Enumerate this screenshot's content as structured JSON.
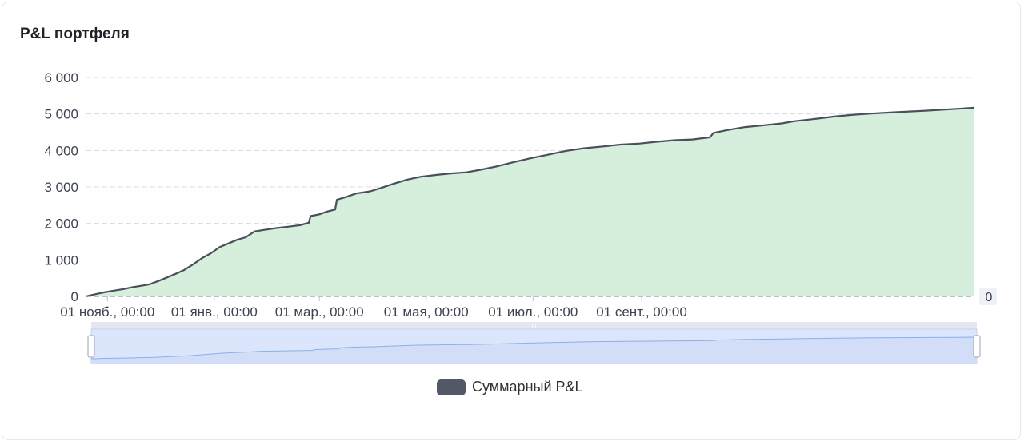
{
  "card": {
    "title": "P&L портфеля"
  },
  "chart_data": {
    "type": "area",
    "series": [
      {
        "name": "Суммарный P&L",
        "points": [
          [
            "2023-10-20",
            0
          ],
          [
            "2023-10-25",
            60
          ],
          [
            "2023-10-30",
            110
          ],
          [
            "2023-11-05",
            160
          ],
          [
            "2023-11-10",
            200
          ],
          [
            "2023-11-15",
            250
          ],
          [
            "2023-11-20",
            290
          ],
          [
            "2023-11-25",
            330
          ],
          [
            "2023-11-30",
            420
          ],
          [
            "2023-12-05",
            520
          ],
          [
            "2023-12-10",
            620
          ],
          [
            "2023-12-15",
            730
          ],
          [
            "2023-12-20",
            880
          ],
          [
            "2023-12-25",
            1050
          ],
          [
            "2023-12-30",
            1180
          ],
          [
            "2024-01-04",
            1350
          ],
          [
            "2024-01-09",
            1450
          ],
          [
            "2024-01-14",
            1550
          ],
          [
            "2024-01-19",
            1620
          ],
          [
            "2024-01-24",
            1780
          ],
          [
            "2024-01-29",
            1820
          ],
          [
            "2024-02-05",
            1870
          ],
          [
            "2024-02-12",
            1910
          ],
          [
            "2024-02-19",
            1950
          ],
          [
            "2024-02-24",
            2020
          ],
          [
            "2024-02-25",
            2200
          ],
          [
            "2024-03-01",
            2250
          ],
          [
            "2024-03-05",
            2320
          ],
          [
            "2024-03-10",
            2380
          ],
          [
            "2024-03-11",
            2650
          ],
          [
            "2024-03-16",
            2720
          ],
          [
            "2024-03-22",
            2820
          ],
          [
            "2024-03-30",
            2880
          ],
          [
            "2024-04-05",
            2970
          ],
          [
            "2024-04-12",
            3080
          ],
          [
            "2024-04-20",
            3200
          ],
          [
            "2024-04-28",
            3280
          ],
          [
            "2024-05-07",
            3330
          ],
          [
            "2024-05-15",
            3370
          ],
          [
            "2024-05-24",
            3400
          ],
          [
            "2024-06-01",
            3470
          ],
          [
            "2024-06-10",
            3560
          ],
          [
            "2024-06-20",
            3680
          ],
          [
            "2024-06-30",
            3790
          ],
          [
            "2024-07-10",
            3890
          ],
          [
            "2024-07-20",
            3990
          ],
          [
            "2024-07-30",
            4060
          ],
          [
            "2024-08-10",
            4110
          ],
          [
            "2024-08-20",
            4160
          ],
          [
            "2024-08-31",
            4190
          ],
          [
            "2024-09-10",
            4240
          ],
          [
            "2024-09-20",
            4280
          ],
          [
            "2024-09-30",
            4300
          ],
          [
            "2024-10-10",
            4360
          ],
          [
            "2024-10-12",
            4480
          ],
          [
            "2024-10-20",
            4560
          ],
          [
            "2024-10-30",
            4640
          ],
          [
            "2024-11-10",
            4690
          ],
          [
            "2024-11-20",
            4740
          ],
          [
            "2024-11-27",
            4800
          ],
          [
            "2024-12-10",
            4870
          ],
          [
            "2024-12-20",
            4930
          ],
          [
            "2024-12-31",
            4980
          ],
          [
            "2025-01-10",
            5010
          ],
          [
            "2025-01-25",
            5050
          ],
          [
            "2025-02-10",
            5090
          ],
          [
            "2025-02-28",
            5140
          ],
          [
            "2025-03-10",
            5170
          ]
        ]
      }
    ],
    "x_range": [
      "2023-10-20",
      "2025-03-10"
    ],
    "ylim": [
      0,
      6000
    ],
    "y_ticks": [
      0,
      1000,
      2000,
      3000,
      4000,
      5000,
      6000
    ],
    "y_tick_labels": [
      "0",
      "1 000",
      "2 000",
      "3 000",
      "4 000",
      "5 000",
      "6 000"
    ],
    "x_ticks": [
      {
        "date": "2023-11-01",
        "label": "01 нояб., 00:00"
      },
      {
        "date": "2024-01-01",
        "label": "01 янв., 00:00"
      },
      {
        "date": "2024-03-01",
        "label": "01 мар., 00:00"
      },
      {
        "date": "2024-05-01",
        "label": "01 мая, 00:00"
      },
      {
        "date": "2024-07-01",
        "label": "01 июл., 00:00"
      },
      {
        "date": "2024-09-01",
        "label": "01 сент., 00:00"
      }
    ],
    "zero_line_label": "0",
    "grid": true,
    "legend_position": "bottom",
    "navigator": true,
    "colors": {
      "line": "#4a4f5a",
      "area": "#d6eedc",
      "grid": "#d8dce2",
      "navigator_fill": "#dbe5fb",
      "navigator_line": "#8bb0e8",
      "legend": "#525866"
    }
  },
  "legend": {
    "label": "Суммарный P&L"
  }
}
